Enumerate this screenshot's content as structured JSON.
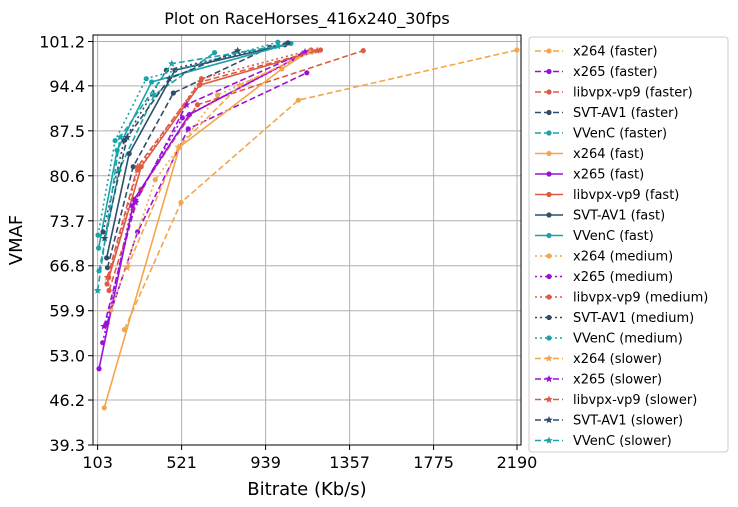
{
  "chart_data": {
    "type": "line",
    "title": "Plot on RaceHorses_416x240_30fps",
    "xlabel": "Bitrate (Kb/s)",
    "ylabel": "VMAF",
    "xlim": [
      80,
      2210
    ],
    "ylim": [
      39.3,
      102.2
    ],
    "xticks": [
      "103",
      "521",
      "939",
      "1357",
      "1775",
      "2190"
    ],
    "yticks": [
      "39.3",
      "46.2",
      "53.0",
      "59.9",
      "66.8",
      "73.7",
      "80.6",
      "87.5",
      "94.4",
      "101.2"
    ],
    "grid": true,
    "legend_position": "outside-right",
    "series": [
      {
        "name": "x264 (faster)",
        "color": "#f4a64a",
        "dash": "dashed",
        "marker": "circle",
        "points": [
          [
            236,
            57.0
          ],
          [
            518,
            76.5
          ],
          [
            1102,
            92.2
          ],
          [
            2190,
            99.9
          ]
        ]
      },
      {
        "name": "x265 (faster)",
        "color": "#9b10d9",
        "dash": "dashed",
        "marker": "circle",
        "points": [
          [
            150,
            58.0
          ],
          [
            302,
            72.0
          ],
          [
            554,
            87.8
          ],
          [
            1144,
            96.4
          ]
        ]
      },
      {
        "name": "libvpx-vp9 (faster)",
        "color": "#de5a42",
        "dash": "dashed",
        "marker": "circle",
        "points": [
          [
            160,
            63.0
          ],
          [
            318,
            78.5
          ],
          [
            600,
            91.5
          ],
          [
            1425,
            99.8
          ]
        ]
      },
      {
        "name": "SVT-AV1 (faster)",
        "color": "#2e4e6b",
        "dash": "dashed",
        "marker": "circle",
        "points": [
          [
            152,
            66.5
          ],
          [
            280,
            82.0
          ],
          [
            480,
            93.3
          ],
          [
            960,
            100.3
          ]
        ]
      },
      {
        "name": "VVenC (faster)",
        "color": "#1aa3a8",
        "dash": "dashed",
        "marker": "circle",
        "points": [
          [
            110,
            66.0
          ],
          [
            210,
            81.5
          ],
          [
            385,
            93.0
          ],
          [
            685,
            99.5
          ]
        ]
      },
      {
        "name": "x264 (fast)",
        "color": "#f4a64a",
        "dash": "solid",
        "marker": "circle",
        "points": [
          [
            136,
            45.0
          ],
          [
            510,
            85.0
          ],
          [
            1020,
            97.0
          ],
          [
            1150,
            99.6
          ]
        ]
      },
      {
        "name": "x265 (fast)",
        "color": "#9b10d9",
        "dash": "solid",
        "marker": "circle",
        "points": [
          [
            110,
            51.0
          ],
          [
            285,
            77.0
          ],
          [
            560,
            90.0
          ],
          [
            1140,
            99.5
          ]
        ]
      },
      {
        "name": "libvpx-vp9 (fast)",
        "color": "#de5a42",
        "dash": "solid",
        "marker": "circle",
        "points": [
          [
            150,
            64.0
          ],
          [
            320,
            82.0
          ],
          [
            610,
            94.5
          ],
          [
            1212,
            99.9
          ]
        ]
      },
      {
        "name": "SVT-AV1 (fast)",
        "color": "#2e4e6b",
        "dash": "solid",
        "marker": "circle",
        "points": [
          [
            148,
            68.0
          ],
          [
            260,
            84.0
          ],
          [
            488,
            96.8
          ],
          [
            1035,
            100.7
          ]
        ]
      },
      {
        "name": "VVenC (fast)",
        "color": "#1aa3a8",
        "dash": "solid",
        "marker": "circle",
        "points": [
          [
            108,
            69.5
          ],
          [
            200,
            84.5
          ],
          [
            372,
            95.0
          ],
          [
            1065,
            100.9
          ]
        ]
      },
      {
        "name": "x264 (medium)",
        "color": "#f4a64a",
        "dash": "dotted",
        "marker": "circle",
        "points": [
          [
            170,
            60.0
          ],
          [
            390,
            80.0
          ],
          [
            700,
            93.0
          ],
          [
            1170,
            99.6
          ]
        ]
      },
      {
        "name": "x265 (medium)",
        "color": "#9b10d9",
        "dash": "dotted",
        "marker": "circle",
        "points": [
          [
            128,
            55.0
          ],
          [
            275,
            76.0
          ],
          [
            525,
            89.5
          ],
          [
            1160,
            99.7
          ]
        ]
      },
      {
        "name": "libvpx-vp9 (medium)",
        "color": "#de5a42",
        "dash": "dotted",
        "marker": "circle",
        "points": [
          [
            158,
            65.0
          ],
          [
            302,
            81.5
          ],
          [
            620,
            95.5
          ],
          [
            1165,
            99.9
          ]
        ]
      },
      {
        "name": "SVT-AV1 (medium)",
        "color": "#2e4e6b",
        "dash": "dotted",
        "marker": "circle",
        "points": [
          [
            130,
            72.0
          ],
          [
            235,
            86.0
          ],
          [
            445,
            96.8
          ],
          [
            1050,
            101.0
          ]
        ]
      },
      {
        "name": "VVenC (medium)",
        "color": "#1aa3a8",
        "dash": "dotted",
        "marker": "circle",
        "points": [
          [
            105,
            71.5
          ],
          [
            190,
            86.0
          ],
          [
            345,
            95.5
          ],
          [
            1000,
            101.1
          ]
        ]
      },
      {
        "name": "x264 (slower)",
        "color": "#f4a64a",
        "dash": "dashed",
        "marker": "star",
        "points": [
          [
            250,
            66.5
          ],
          [
            505,
            85.0
          ],
          [
            810,
            94.5
          ],
          [
            1160,
            99.6
          ]
        ]
      },
      {
        "name": "x265 (slower)",
        "color": "#9b10d9",
        "dash": "dashed",
        "marker": "star",
        "points": [
          [
            135,
            57.5
          ],
          [
            292,
            76.5
          ],
          [
            545,
            91.5
          ],
          [
            1135,
            99.6
          ]
        ]
      },
      {
        "name": "libvpx-vp9 (slower)",
        "color": "#de5a42",
        "dash": "dashed",
        "marker": "star",
        "points": [
          [
            152,
            65.0
          ],
          [
            302,
            82.0
          ],
          [
            615,
            95.0
          ],
          [
            1195,
            99.8
          ]
        ]
      },
      {
        "name": "SVT-AV1 (slower)",
        "color": "#2e4e6b",
        "dash": "dashed",
        "marker": "star",
        "points": [
          [
            138,
            71.0
          ],
          [
            250,
            86.5
          ],
          [
            460,
            95.5
          ],
          [
            800,
            99.8
          ]
        ]
      },
      {
        "name": "VVenC (slower)",
        "color": "#1aa3a8",
        "dash": "dashed",
        "marker": "star",
        "points": [
          [
            103,
            63.0
          ],
          [
            215,
            86.5
          ],
          [
            472,
            97.8
          ],
          [
            1000,
            100.5
          ]
        ]
      }
    ]
  }
}
